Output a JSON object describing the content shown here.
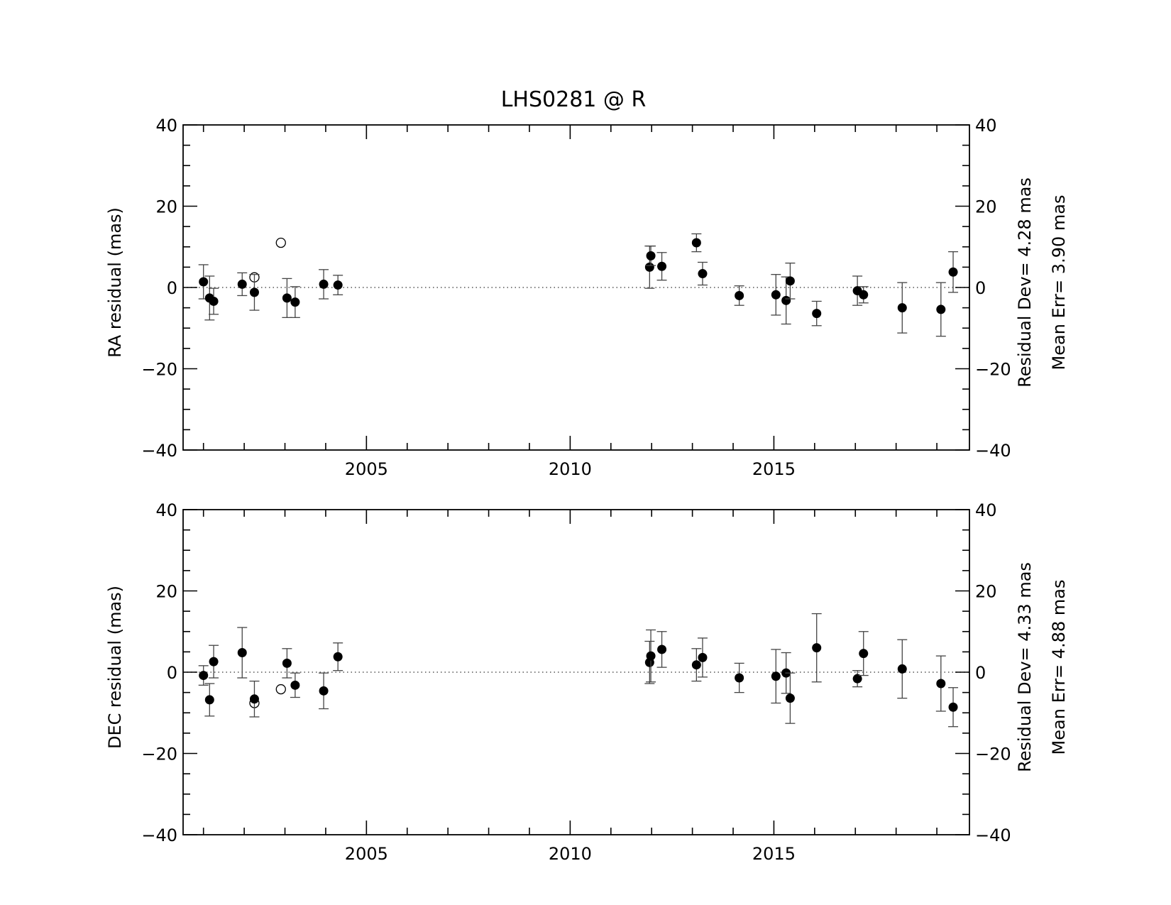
{
  "chart_data": {
    "type": "scatter",
    "title": "LHS0281 @ R",
    "xlim": [
      2000.5,
      2019.8
    ],
    "x_ticks": [
      2005,
      2010,
      2015
    ],
    "x_tick_labels": [
      "2005",
      "2010",
      "2015"
    ],
    "grid": false,
    "panels": [
      {
        "ylabel": "RA residual (mas)",
        "ylim": [
          -40,
          40
        ],
        "y_ticks": [
          -40,
          -20,
          0,
          20,
          40
        ],
        "y_tick_labels": [
          "−40",
          "−20",
          "0",
          "20",
          "40"
        ],
        "stat_residual": "Residual Dev=   4.28  mas",
        "stat_mean": "Mean  Err=  3.90  mas",
        "points": [
          {
            "x": 2001.0,
            "y": 1.4,
            "err": 4.2,
            "marker": "filled"
          },
          {
            "x": 2001.15,
            "y": -2.6,
            "err": 5.4,
            "marker": "filled"
          },
          {
            "x": 2001.25,
            "y": -3.4,
            "err": 3.2,
            "marker": "filled"
          },
          {
            "x": 2001.95,
            "y": 0.8,
            "err": 2.8,
            "marker": "filled"
          },
          {
            "x": 2002.25,
            "y": 2.5,
            "err": 0,
            "marker": "open"
          },
          {
            "x": 2002.25,
            "y": -1.2,
            "err": 4.4,
            "marker": "filled"
          },
          {
            "x": 2002.9,
            "y": 11.0,
            "err": 0,
            "marker": "open"
          },
          {
            "x": 2003.05,
            "y": -2.6,
            "err": 4.8,
            "marker": "filled"
          },
          {
            "x": 2003.25,
            "y": -3.6,
            "err": 3.8,
            "marker": "filled"
          },
          {
            "x": 2003.95,
            "y": 0.8,
            "err": 3.6,
            "marker": "filled"
          },
          {
            "x": 2004.3,
            "y": 0.6,
            "err": 2.4,
            "marker": "filled"
          },
          {
            "x": 2011.95,
            "y": 5.0,
            "err": 5.2,
            "marker": "filled"
          },
          {
            "x": 2011.98,
            "y": 7.8,
            "err": 2.4,
            "marker": "filled"
          },
          {
            "x": 2012.25,
            "y": 5.2,
            "err": 3.4,
            "marker": "filled"
          },
          {
            "x": 2013.1,
            "y": 11.0,
            "err": 2.2,
            "marker": "filled"
          },
          {
            "x": 2013.25,
            "y": 3.4,
            "err": 2.8,
            "marker": "filled"
          },
          {
            "x": 2014.15,
            "y": -2.0,
            "err": 2.4,
            "marker": "filled"
          },
          {
            "x": 2015.05,
            "y": -1.8,
            "err": 5.0,
            "marker": "filled"
          },
          {
            "x": 2015.3,
            "y": -3.2,
            "err": 5.8,
            "marker": "filled"
          },
          {
            "x": 2015.4,
            "y": 1.6,
            "err": 4.4,
            "marker": "filled"
          },
          {
            "x": 2016.05,
            "y": -6.4,
            "err": 3.0,
            "marker": "filled"
          },
          {
            "x": 2017.05,
            "y": -0.8,
            "err": 3.6,
            "marker": "filled"
          },
          {
            "x": 2017.2,
            "y": -1.8,
            "err": 2.0,
            "marker": "filled"
          },
          {
            "x": 2018.15,
            "y": -5.0,
            "err": 6.2,
            "marker": "filled"
          },
          {
            "x": 2019.1,
            "y": -5.4,
            "err": 6.6,
            "marker": "filled"
          },
          {
            "x": 2019.4,
            "y": 3.8,
            "err": 5.0,
            "marker": "filled"
          }
        ]
      },
      {
        "ylabel": "DEC residual (mas)",
        "ylim": [
          -40,
          40
        ],
        "y_ticks": [
          -40,
          -20,
          0,
          20,
          40
        ],
        "y_tick_labels": [
          "−40",
          "−20",
          "0",
          "20",
          "40"
        ],
        "stat_residual": "Residual Dev=   4.33  mas",
        "stat_mean": "Mean  Err=  4.88  mas",
        "points": [
          {
            "x": 2001.0,
            "y": -0.8,
            "err": 2.4,
            "marker": "filled"
          },
          {
            "x": 2001.15,
            "y": -6.8,
            "err": 4.0,
            "marker": "filled"
          },
          {
            "x": 2001.25,
            "y": 2.6,
            "err": 4.0,
            "marker": "filled"
          },
          {
            "x": 2001.95,
            "y": 4.8,
            "err": 6.2,
            "marker": "filled"
          },
          {
            "x": 2002.25,
            "y": -7.6,
            "err": 0,
            "marker": "open"
          },
          {
            "x": 2002.25,
            "y": -6.6,
            "err": 4.4,
            "marker": "filled"
          },
          {
            "x": 2002.9,
            "y": -4.2,
            "err": 0,
            "marker": "open"
          },
          {
            "x": 2003.05,
            "y": 2.2,
            "err": 3.6,
            "marker": "filled"
          },
          {
            "x": 2003.25,
            "y": -3.2,
            "err": 3.0,
            "marker": "filled"
          },
          {
            "x": 2003.95,
            "y": -4.6,
            "err": 4.4,
            "marker": "filled"
          },
          {
            "x": 2004.3,
            "y": 3.8,
            "err": 3.4,
            "marker": "filled"
          },
          {
            "x": 2011.95,
            "y": 2.4,
            "err": 5.2,
            "marker": "filled"
          },
          {
            "x": 2011.98,
            "y": 4.0,
            "err": 6.4,
            "marker": "filled"
          },
          {
            "x": 2012.25,
            "y": 5.6,
            "err": 4.4,
            "marker": "filled"
          },
          {
            "x": 2013.1,
            "y": 1.8,
            "err": 4.0,
            "marker": "filled"
          },
          {
            "x": 2013.25,
            "y": 3.6,
            "err": 4.8,
            "marker": "filled"
          },
          {
            "x": 2014.15,
            "y": -1.4,
            "err": 3.6,
            "marker": "filled"
          },
          {
            "x": 2015.05,
            "y": -1.0,
            "err": 6.6,
            "marker": "filled"
          },
          {
            "x": 2015.3,
            "y": -0.2,
            "err": 5.0,
            "marker": "filled"
          },
          {
            "x": 2015.4,
            "y": -6.4,
            "err": 6.2,
            "marker": "filled"
          },
          {
            "x": 2016.05,
            "y": 6.0,
            "err": 8.4,
            "marker": "filled"
          },
          {
            "x": 2017.05,
            "y": -1.6,
            "err": 2.0,
            "marker": "filled"
          },
          {
            "x": 2017.2,
            "y": 4.6,
            "err": 5.4,
            "marker": "filled"
          },
          {
            "x": 2018.15,
            "y": 0.8,
            "err": 7.2,
            "marker": "filled"
          },
          {
            "x": 2019.1,
            "y": -2.8,
            "err": 6.8,
            "marker": "filled"
          },
          {
            "x": 2019.4,
            "y": -8.6,
            "err": 4.8,
            "marker": "filled"
          }
        ]
      }
    ]
  }
}
